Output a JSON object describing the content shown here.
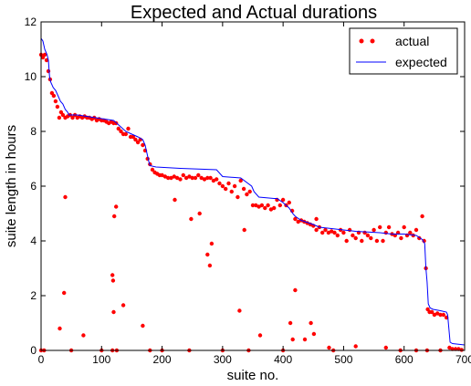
{
  "chart_data": {
    "type": "scatter",
    "title": "Expected and Actual durations",
    "xlabel": "suite no.",
    "ylabel": "suite length in hours",
    "xlim": [
      0,
      700
    ],
    "ylim": [
      0,
      12
    ],
    "xticks": [
      "0",
      "100",
      "200",
      "300",
      "400",
      "500",
      "600",
      "700"
    ],
    "yticks": [
      "0",
      "2",
      "4",
      "6",
      "8",
      "10",
      "12"
    ],
    "grid": false,
    "legend_position": "top-right",
    "series": [
      {
        "name": "actual",
        "kind": "scatter",
        "color": "#ff0000",
        "points": [
          [
            0,
            10.8
          ],
          [
            3,
            10.7
          ],
          [
            6,
            10.8
          ],
          [
            9,
            10.6
          ],
          [
            12,
            10.2
          ],
          [
            15,
            9.9
          ],
          [
            18,
            9.4
          ],
          [
            21,
            9.3
          ],
          [
            24,
            9.1
          ],
          [
            27,
            8.9
          ],
          [
            30,
            8.5
          ],
          [
            33,
            8.7
          ],
          [
            36,
            8.6
          ],
          [
            40,
            8.5
          ],
          [
            44,
            8.55
          ],
          [
            48,
            8.6
          ],
          [
            52,
            8.5
          ],
          [
            56,
            8.6
          ],
          [
            60,
            8.5
          ],
          [
            64,
            8.55
          ],
          [
            68,
            8.5
          ],
          [
            72,
            8.55
          ],
          [
            76,
            8.5
          ],
          [
            80,
            8.5
          ],
          [
            84,
            8.45
          ],
          [
            88,
            8.5
          ],
          [
            92,
            8.4
          ],
          [
            96,
            8.45
          ],
          [
            100,
            8.4
          ],
          [
            104,
            8.4
          ],
          [
            108,
            8.35
          ],
          [
            112,
            8.3
          ],
          [
            116,
            8.35
          ],
          [
            120,
            8.3
          ],
          [
            124,
            8.3
          ],
          [
            128,
            8.1
          ],
          [
            132,
            8.0
          ],
          [
            136,
            7.9
          ],
          [
            140,
            7.9
          ],
          [
            144,
            8.1
          ],
          [
            148,
            7.8
          ],
          [
            152,
            7.8
          ],
          [
            156,
            7.7
          ],
          [
            160,
            7.6
          ],
          [
            164,
            7.7
          ],
          [
            168,
            7.5
          ],
          [
            172,
            7.3
          ],
          [
            176,
            7.0
          ],
          [
            180,
            6.8
          ],
          [
            184,
            6.6
          ],
          [
            188,
            6.5
          ],
          [
            192,
            6.45
          ],
          [
            196,
            6.4
          ],
          [
            200,
            6.4
          ],
          [
            205,
            6.35
          ],
          [
            210,
            6.3
          ],
          [
            215,
            6.3
          ],
          [
            220,
            6.35
          ],
          [
            225,
            6.3
          ],
          [
            230,
            6.25
          ],
          [
            235,
            6.4
          ],
          [
            240,
            6.3
          ],
          [
            245,
            6.35
          ],
          [
            250,
            6.3
          ],
          [
            255,
            6.3
          ],
          [
            260,
            6.4
          ],
          [
            265,
            6.3
          ],
          [
            270,
            6.25
          ],
          [
            275,
            6.3
          ],
          [
            280,
            6.3
          ],
          [
            285,
            6.2
          ],
          [
            290,
            6.25
          ],
          [
            295,
            6.1
          ],
          [
            300,
            6.0
          ],
          [
            305,
            5.9
          ],
          [
            310,
            6.1
          ],
          [
            315,
            5.8
          ],
          [
            320,
            6.0
          ],
          [
            325,
            5.6
          ],
          [
            330,
            6.2
          ],
          [
            335,
            5.9
          ],
          [
            340,
            5.7
          ],
          [
            345,
            5.8
          ],
          [
            350,
            5.3
          ],
          [
            355,
            5.3
          ],
          [
            360,
            5.25
          ],
          [
            365,
            5.3
          ],
          [
            370,
            5.2
          ],
          [
            375,
            5.3
          ],
          [
            380,
            5.15
          ],
          [
            385,
            5.2
          ],
          [
            390,
            5.5
          ],
          [
            395,
            5.3
          ],
          [
            400,
            5.5
          ],
          [
            405,
            5.3
          ],
          [
            410,
            5.4
          ],
          [
            415,
            5.1
          ],
          [
            420,
            4.8
          ],
          [
            425,
            4.7
          ],
          [
            430,
            4.75
          ],
          [
            435,
            4.7
          ],
          [
            440,
            4.65
          ],
          [
            445,
            4.6
          ],
          [
            450,
            4.55
          ],
          [
            455,
            4.4
          ],
          [
            460,
            4.5
          ],
          [
            465,
            4.3
          ],
          [
            470,
            4.4
          ],
          [
            475,
            4.3
          ],
          [
            480,
            4.35
          ],
          [
            485,
            4.3
          ],
          [
            490,
            4.2
          ],
          [
            495,
            4.4
          ],
          [
            500,
            4.3
          ],
          [
            505,
            4.0
          ],
          [
            510,
            4.4
          ],
          [
            515,
            4.2
          ],
          [
            520,
            4.1
          ],
          [
            525,
            4.3
          ],
          [
            530,
            4.0
          ],
          [
            535,
            4.3
          ],
          [
            540,
            4.2
          ],
          [
            545,
            4.1
          ],
          [
            550,
            4.4
          ],
          [
            555,
            4.0
          ],
          [
            560,
            4.5
          ],
          [
            565,
            4.0
          ],
          [
            570,
            4.3
          ],
          [
            575,
            4.5
          ],
          [
            580,
            4.25
          ],
          [
            585,
            4.2
          ],
          [
            590,
            4.3
          ],
          [
            595,
            4.1
          ],
          [
            600,
            4.5
          ],
          [
            605,
            4.2
          ],
          [
            610,
            4.3
          ],
          [
            615,
            4.2
          ],
          [
            620,
            4.4
          ],
          [
            625,
            4.1
          ],
          [
            630,
            4.9
          ],
          [
            633,
            4.0
          ],
          [
            636,
            3.0
          ],
          [
            639,
            1.5
          ],
          [
            642,
            1.4
          ],
          [
            646,
            1.4
          ],
          [
            650,
            1.3
          ],
          [
            655,
            1.35
          ],
          [
            660,
            1.3
          ],
          [
            665,
            1.3
          ],
          [
            670,
            1.2
          ],
          [
            675,
            0.1
          ],
          [
            680,
            0.05
          ],
          [
            685,
            0.05
          ],
          [
            690,
            0.05
          ],
          [
            695,
            0.02
          ],
          [
            40,
            5.6
          ],
          [
            38,
            2.1
          ],
          [
            31,
            0.8
          ],
          [
            70,
            0.55
          ],
          [
            118,
            2.75
          ],
          [
            119,
            2.55
          ],
          [
            120,
            1.4
          ],
          [
            121,
            4.9
          ],
          [
            124,
            5.25
          ],
          [
            136,
            1.65
          ],
          [
            168,
            0.9
          ],
          [
            221,
            5.5
          ],
          [
            248,
            4.8
          ],
          [
            262,
            5.0
          ],
          [
            275,
            3.5
          ],
          [
            279,
            3.1
          ],
          [
            282,
            3.9
          ],
          [
            328,
            1.45
          ],
          [
            336,
            4.4
          ],
          [
            362,
            0.55
          ],
          [
            412,
            1.0
          ],
          [
            416,
            0.4
          ],
          [
            420,
            2.2
          ],
          [
            436,
            0.4
          ],
          [
            446,
            1.0
          ],
          [
            451,
            0.6
          ],
          [
            455,
            4.8
          ],
          [
            476,
            0.1
          ],
          [
            520,
            0.15
          ],
          [
            570,
            0.1
          ],
          [
            0,
            0
          ],
          [
            5,
            0
          ],
          [
            50,
            0
          ],
          [
            100,
            0
          ],
          [
            118,
            0
          ],
          [
            125,
            0
          ],
          [
            180,
            0
          ],
          [
            200,
            0
          ],
          [
            245,
            0
          ],
          [
            300,
            0
          ],
          [
            343,
            0
          ],
          [
            400,
            0
          ],
          [
            483,
            0
          ],
          [
            594,
            0
          ],
          [
            620,
            0
          ],
          [
            638,
            0
          ],
          [
            660,
            0
          ]
        ]
      },
      {
        "name": "expected",
        "kind": "line",
        "color": "#0000ff",
        "points": [
          [
            0,
            11.4
          ],
          [
            3,
            11.3
          ],
          [
            6,
            11.0
          ],
          [
            10,
            10.8
          ],
          [
            12,
            10.6
          ],
          [
            14,
            10.0
          ],
          [
            16,
            9.8
          ],
          [
            20,
            9.6
          ],
          [
            24,
            9.5
          ],
          [
            28,
            9.3
          ],
          [
            32,
            9.1
          ],
          [
            36,
            9.0
          ],
          [
            40,
            8.8
          ],
          [
            44,
            8.7
          ],
          [
            46,
            8.6
          ],
          [
            60,
            8.6
          ],
          [
            90,
            8.5
          ],
          [
            120,
            8.4
          ],
          [
            130,
            8.2
          ],
          [
            140,
            8.0
          ],
          [
            150,
            7.9
          ],
          [
            160,
            7.8
          ],
          [
            168,
            7.7
          ],
          [
            172,
            7.5
          ],
          [
            176,
            7.1
          ],
          [
            178,
            6.9
          ],
          [
            180,
            6.75
          ],
          [
            190,
            6.7
          ],
          [
            230,
            6.65
          ],
          [
            290,
            6.6
          ],
          [
            300,
            6.35
          ],
          [
            330,
            6.3
          ],
          [
            348,
            6.0
          ],
          [
            352,
            5.8
          ],
          [
            360,
            5.6
          ],
          [
            385,
            5.55
          ],
          [
            390,
            5.55
          ],
          [
            400,
            5.4
          ],
          [
            410,
            5.2
          ],
          [
            416,
            5.0
          ],
          [
            420,
            4.9
          ],
          [
            430,
            4.75
          ],
          [
            450,
            4.6
          ],
          [
            460,
            4.5
          ],
          [
            480,
            4.45
          ],
          [
            500,
            4.4
          ],
          [
            520,
            4.35
          ],
          [
            560,
            4.3
          ],
          [
            580,
            4.25
          ],
          [
            600,
            4.25
          ],
          [
            620,
            4.2
          ],
          [
            630,
            4.05
          ],
          [
            634,
            3.9
          ],
          [
            636,
            3.0
          ],
          [
            638,
            2.5
          ],
          [
            640,
            1.7
          ],
          [
            643,
            1.55
          ],
          [
            648,
            1.5
          ],
          [
            660,
            1.45
          ],
          [
            670,
            1.4
          ],
          [
            672,
            1.3
          ],
          [
            676,
            0.3
          ],
          [
            680,
            0.25
          ],
          [
            700,
            0.2
          ]
        ]
      }
    ]
  }
}
